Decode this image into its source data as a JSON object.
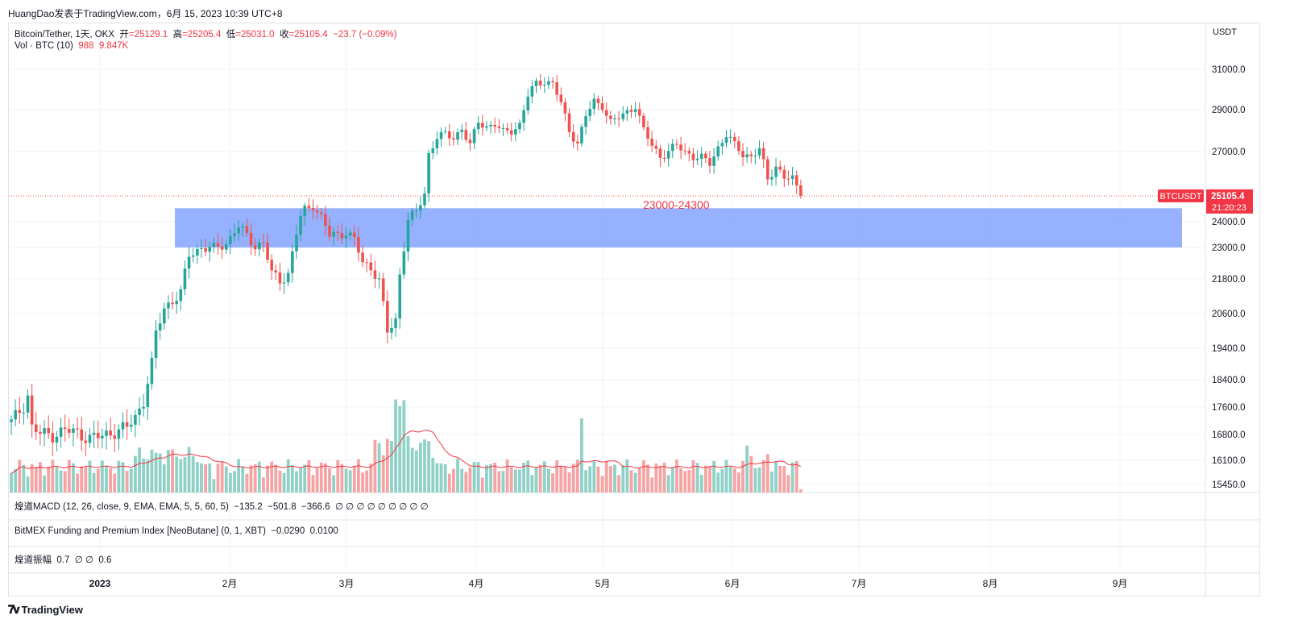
{
  "caption": "HuangDao发表于TradingView.com，6月 15, 2023 10:39 UTC+8",
  "legend": {
    "symbol": "Bitcoin/Tether, 1天, OKX",
    "open_label": "开",
    "open": "=25129.1",
    "high_label": "高",
    "high": "=25205.4",
    "low_label": "低",
    "low": "=25031.0",
    "close_label": "收",
    "close": "=25105.4",
    "change": "−23.7 (−0.09%)",
    "vol_label": "Vol · BTC (10)",
    "vol_value": "988",
    "vol_ma": "9.847K"
  },
  "indicators": {
    "macd_label": "煌道MACD (12, 26, close, 9, EMA, EMA, 5, 5, 60, 5)",
    "macd_v1": "−135.2",
    "macd_v2": "−501.8",
    "macd_v3": "−366.6",
    "macd_rest": "∅ ∅ ∅ ∅ ∅ ∅ ∅ ∅ ∅",
    "bitmex_label": "BitMEX Funding and Premium Index [NeoButane] (0, 1, XBT)",
    "bitmex_v1": "−0.0290",
    "bitmex_v2": "0.0100",
    "amp_label": "煌道振幅",
    "amp_v1": "0.7",
    "amp_rest": "∅ ∅",
    "amp_v2": "0.6"
  },
  "price_axis": {
    "currency": "USDT",
    "symbol_tag": "BTCUSDT",
    "last_price": "25105.4",
    "countdown": "21:20:23"
  },
  "zone_label": "23000-24300",
  "footer": {
    "brand": "TradingView"
  },
  "colors": {
    "up": "#26a69a",
    "down": "#ef5350",
    "vol_up": "#8fd1c7",
    "vol_down": "#f5a3a3",
    "zone": "#7b9eff",
    "ma": "#f23645",
    "accent": "#2962ff"
  },
  "chart_data": {
    "type": "candlestick",
    "timeframe": "1D",
    "y_ticks": [
      31000,
      29000,
      27000,
      24000,
      23000,
      21800,
      20600,
      19400,
      18400,
      17600,
      16800,
      16100,
      15450
    ],
    "x_ticks": [
      "2023",
      "2月",
      "3月",
      "4月",
      "5月",
      "6月",
      "7月",
      "8月",
      "9月"
    ],
    "zone": {
      "low": 23000,
      "high": 24300,
      "label": "23000-24300"
    },
    "last_price": 25105.4,
    "close_path": [
      [
        0,
        17150
      ],
      [
        3,
        17650
      ],
      [
        4,
        17950
      ],
      [
        5,
        17000
      ],
      [
        7,
        16820
      ],
      [
        10,
        16800
      ],
      [
        13,
        16920
      ],
      [
        16,
        16850
      ],
      [
        19,
        16700
      ],
      [
        22,
        16750
      ],
      [
        25,
        16900
      ],
      [
        28,
        17000
      ],
      [
        30,
        17300
      ],
      [
        32,
        17800
      ],
      [
        34,
        18900
      ],
      [
        35,
        19900
      ],
      [
        37,
        20800
      ],
      [
        39,
        21050
      ],
      [
        41,
        21300
      ],
      [
        43,
        22700
      ],
      [
        46,
        23000
      ],
      [
        49,
        22950
      ],
      [
        52,
        23150
      ],
      [
        54,
        23650
      ],
      [
        55,
        23800
      ],
      [
        57,
        23450
      ],
      [
        59,
        23050
      ],
      [
        61,
        23200
      ],
      [
        63,
        22000
      ],
      [
        65,
        21750
      ],
      [
        67,
        22000
      ],
      [
        69,
        23550
      ],
      [
        70,
        24200
      ],
      [
        71,
        24500
      ],
      [
        73,
        24700
      ],
      [
        75,
        24200
      ],
      [
        77,
        23450
      ],
      [
        79,
        23500
      ],
      [
        81,
        23600
      ],
      [
        83,
        23300
      ],
      [
        85,
        22400
      ],
      [
        87,
        22250
      ],
      [
        89,
        21750
      ],
      [
        91,
        19950
      ],
      [
        93,
        20350
      ],
      [
        94,
        22000
      ],
      [
        96,
        24100
      ],
      [
        98,
        24400
      ],
      [
        100,
        25200
      ],
      [
        101,
        26900
      ],
      [
        103,
        27700
      ],
      [
        105,
        27800
      ],
      [
        107,
        27650
      ],
      [
        109,
        28100
      ],
      [
        111,
        27300
      ],
      [
        113,
        28400
      ],
      [
        115,
        28200
      ],
      [
        117,
        28300
      ],
      [
        119,
        27900
      ],
      [
        121,
        28000
      ],
      [
        123,
        28300
      ],
      [
        125,
        29700
      ],
      [
        127,
        30300
      ],
      [
        129,
        30400
      ],
      [
        131,
        30300
      ],
      [
        133,
        29300
      ],
      [
        135,
        28000
      ],
      [
        137,
        27400
      ],
      [
        139,
        28700
      ],
      [
        141,
        29400
      ],
      [
        143,
        29200
      ],
      [
        145,
        28400
      ],
      [
        147,
        28600
      ],
      [
        149,
        28900
      ],
      [
        151,
        29200
      ],
      [
        153,
        28000
      ],
      [
        155,
        27300
      ],
      [
        157,
        26800
      ],
      [
        159,
        27000
      ],
      [
        161,
        27300
      ],
      [
        163,
        27000
      ],
      [
        165,
        26800
      ],
      [
        167,
        26700
      ],
      [
        169,
        26500
      ],
      [
        171,
        27200
      ],
      [
        173,
        27800
      ],
      [
        175,
        27300
      ],
      [
        177,
        26900
      ],
      [
        179,
        26800
      ],
      [
        181,
        27100
      ],
      [
        183,
        25800
      ],
      [
        185,
        26400
      ],
      [
        187,
        25900
      ],
      [
        189,
        25800
      ],
      [
        191,
        25105
      ]
    ],
    "volume_ma_note": "Vol · BTC (10)"
  }
}
